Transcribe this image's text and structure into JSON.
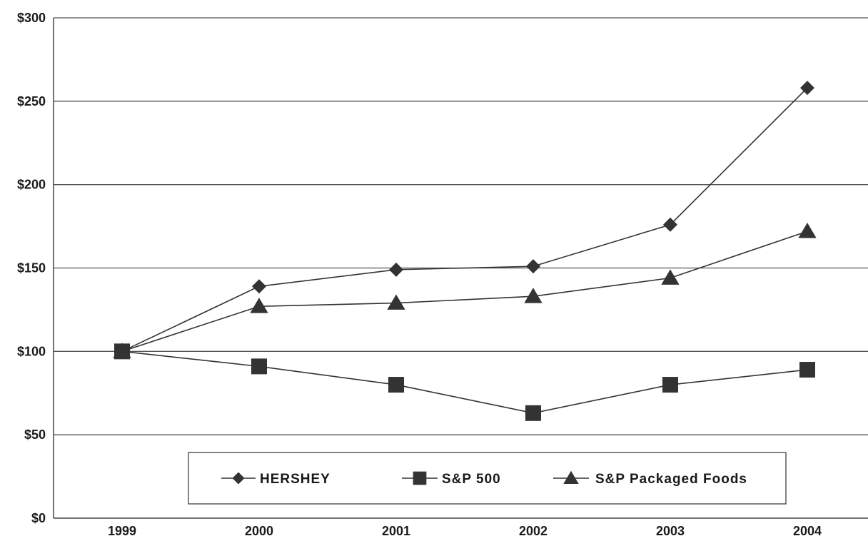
{
  "chart_data": {
    "type": "line",
    "title": "",
    "xlabel": "",
    "ylabel": "",
    "categories": [
      "1999",
      "2000",
      "2001",
      "2002",
      "2003",
      "2004"
    ],
    "ylim": [
      0,
      300
    ],
    "yticks": [
      0,
      50,
      100,
      150,
      200,
      250,
      300
    ],
    "ytick_labels": [
      "$0",
      "$50",
      "$100",
      "$150",
      "$200",
      "$250",
      "$300"
    ],
    "grid": "horizontal",
    "legend_position": "bottom-center",
    "series": [
      {
        "name": "HERSHEY",
        "marker": "diamond",
        "values": [
          100,
          139,
          149,
          151,
          176,
          258
        ]
      },
      {
        "name": "S&P 500",
        "marker": "square",
        "values": [
          100,
          91,
          80,
          63,
          80,
          89
        ]
      },
      {
        "name": "S&P Packaged Foods",
        "marker": "triangle",
        "values": [
          100,
          127,
          129,
          133,
          144,
          172
        ]
      }
    ],
    "colors": {
      "line": "#333333",
      "marker": "#333333",
      "grid": "#555555"
    }
  }
}
